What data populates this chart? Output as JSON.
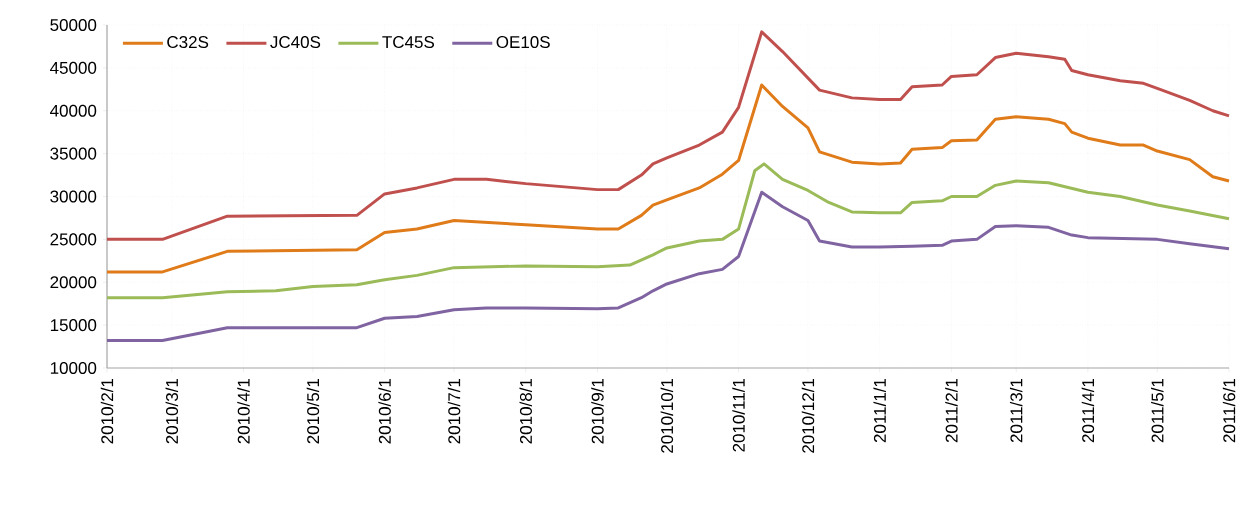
{
  "chart_data": {
    "type": "line",
    "grid": true,
    "legend": "top left",
    "line_style": "solid",
    "marker": "none",
    "xlim": [
      "2010-02-01",
      "2011-06-01"
    ],
    "xticks": [
      {
        "value": "2010-02-01",
        "label": "2010/2/1"
      },
      {
        "value": "2010-03-01",
        "label": "2010/3/1"
      },
      {
        "value": "2010-04-01",
        "label": "2010/4/1"
      },
      {
        "value": "2010-05-01",
        "label": "2010/5/1"
      },
      {
        "value": "2010-06-01",
        "label": "2010/6/1"
      },
      {
        "value": "2010-07-01",
        "label": "2010/7/1"
      },
      {
        "value": "2010-08-01",
        "label": "2010/8/1"
      },
      {
        "value": "2010-09-01",
        "label": "2010/9/1"
      },
      {
        "value": "2010-10-01",
        "label": "2010/10/1"
      },
      {
        "value": "2010-11-01",
        "label": "2010/11/1"
      },
      {
        "value": "2010-12-01",
        "label": "2010/12/1"
      },
      {
        "value": "2011-01-01",
        "label": "2011/1/1"
      },
      {
        "value": "2011-02-01",
        "label": "2011/2/1"
      },
      {
        "value": "2011-03-01",
        "label": "2011/3/1"
      },
      {
        "value": "2011-04-01",
        "label": "2011/4/1"
      },
      {
        "value": "2011-05-01",
        "label": "2011/5/1"
      },
      {
        "value": "2011-06-01",
        "label": "2011/6/1"
      }
    ],
    "ylim": [
      10000,
      50000
    ],
    "yticks": [
      10000,
      15000,
      20000,
      25000,
      30000,
      35000,
      40000,
      45000,
      50000
    ],
    "series": [
      {
        "name": "C32S",
        "color": "#e07b1a",
        "x": [
          "2010-02-01",
          "2010-02-25",
          "2010-03-25",
          "2010-05-20",
          "2010-06-01",
          "2010-06-15",
          "2010-07-01",
          "2010-08-01",
          "2010-09-01",
          "2010-09-10",
          "2010-09-20",
          "2010-09-25",
          "2010-10-01",
          "2010-10-15",
          "2010-10-25",
          "2010-11-01",
          "2010-11-11",
          "2010-11-20",
          "2010-12-01",
          "2010-12-06",
          "2010-12-20",
          "2011-01-01",
          "2011-01-10",
          "2011-01-15",
          "2011-01-28",
          "2011-02-01",
          "2011-02-12",
          "2011-02-20",
          "2011-03-01",
          "2011-03-15",
          "2011-03-22",
          "2011-03-25",
          "2011-04-01",
          "2011-04-15",
          "2011-04-25",
          "2011-05-01",
          "2011-05-15",
          "2011-05-25",
          "2011-06-01"
        ],
        "values": [
          21200,
          21200,
          23600,
          23800,
          25800,
          26200,
          27200,
          26700,
          26200,
          26200,
          27800,
          29000,
          29600,
          31000,
          32600,
          34200,
          43000,
          40500,
          38000,
          35200,
          34000,
          33800,
          33900,
          35500,
          35700,
          36500,
          36600,
          39000,
          39300,
          39000,
          38500,
          37500,
          36800,
          36000,
          36000,
          35300,
          34300,
          32300,
          31800
        ]
      },
      {
        "name": "JC40S",
        "color": "#c0504d",
        "x": [
          "2010-02-01",
          "2010-02-25",
          "2010-03-25",
          "2010-05-20",
          "2010-06-01",
          "2010-06-15",
          "2010-07-01",
          "2010-07-15",
          "2010-08-01",
          "2010-09-01",
          "2010-09-10",
          "2010-09-20",
          "2010-09-25",
          "2010-10-01",
          "2010-10-15",
          "2010-10-25",
          "2010-11-01",
          "2010-11-11",
          "2010-11-20",
          "2010-12-06",
          "2010-12-20",
          "2011-01-01",
          "2011-01-10",
          "2011-01-15",
          "2011-01-28",
          "2011-02-01",
          "2011-02-12",
          "2011-02-20",
          "2011-03-01",
          "2011-03-15",
          "2011-03-22",
          "2011-03-25",
          "2011-04-01",
          "2011-04-15",
          "2011-04-25",
          "2011-05-01",
          "2011-05-15",
          "2011-05-25",
          "2011-06-01"
        ],
        "values": [
          25000,
          25000,
          27700,
          27800,
          30300,
          31000,
          32000,
          32000,
          31500,
          30800,
          30800,
          32500,
          33800,
          34500,
          36000,
          37500,
          40400,
          49200,
          46900,
          42400,
          41500,
          41300,
          41300,
          42800,
          43000,
          44000,
          44200,
          46200,
          46700,
          46300,
          46000,
          44700,
          44200,
          43500,
          43200,
          42600,
          41200,
          40000,
          39400
        ]
      },
      {
        "name": "TC45S",
        "color": "#9bbb59",
        "x": [
          "2010-02-01",
          "2010-02-25",
          "2010-03-25",
          "2010-04-15",
          "2010-05-01",
          "2010-05-20",
          "2010-06-01",
          "2010-06-15",
          "2010-07-01",
          "2010-08-01",
          "2010-09-01",
          "2010-09-15",
          "2010-09-25",
          "2010-10-01",
          "2010-10-15",
          "2010-10-25",
          "2010-11-01",
          "2010-11-08",
          "2010-11-12",
          "2010-11-20",
          "2010-12-01",
          "2010-12-10",
          "2010-12-20",
          "2011-01-01",
          "2011-01-10",
          "2011-01-15",
          "2011-01-28",
          "2011-02-01",
          "2011-02-12",
          "2011-02-20",
          "2011-03-01",
          "2011-03-15",
          "2011-04-01",
          "2011-04-15",
          "2011-05-01",
          "2011-05-15",
          "2011-06-01"
        ],
        "values": [
          18200,
          18200,
          18900,
          19000,
          19500,
          19700,
          20300,
          20800,
          21700,
          21900,
          21800,
          22000,
          23200,
          24000,
          24800,
          25000,
          26200,
          33000,
          33800,
          32000,
          30700,
          29300,
          28200,
          28100,
          28100,
          29300,
          29500,
          30000,
          30000,
          31300,
          31800,
          31600,
          30500,
          30000,
          29000,
          28300,
          27400
        ]
      },
      {
        "name": "OE10S",
        "color": "#8064a2",
        "x": [
          "2010-02-01",
          "2010-02-25",
          "2010-03-25",
          "2010-05-20",
          "2010-06-01",
          "2010-06-15",
          "2010-07-01",
          "2010-07-15",
          "2010-08-01",
          "2010-09-01",
          "2010-09-10",
          "2010-09-20",
          "2010-09-25",
          "2010-10-01",
          "2010-10-15",
          "2010-10-25",
          "2010-11-01",
          "2010-11-11",
          "2010-11-20",
          "2010-12-01",
          "2010-12-06",
          "2010-12-20",
          "2011-01-01",
          "2011-01-15",
          "2011-01-28",
          "2011-02-01",
          "2011-02-12",
          "2011-02-20",
          "2011-03-01",
          "2011-03-15",
          "2011-03-25",
          "2011-04-01",
          "2011-05-01",
          "2011-05-15",
          "2011-06-01"
        ],
        "values": [
          13200,
          13200,
          14700,
          14700,
          15800,
          16000,
          16800,
          17000,
          17000,
          16900,
          17000,
          18200,
          19000,
          19800,
          21000,
          21500,
          23000,
          30500,
          28800,
          27200,
          24800,
          24100,
          24100,
          24200,
          24300,
          24800,
          25000,
          26500,
          26600,
          26400,
          25500,
          25200,
          25000,
          24500,
          23900
        ]
      }
    ]
  }
}
